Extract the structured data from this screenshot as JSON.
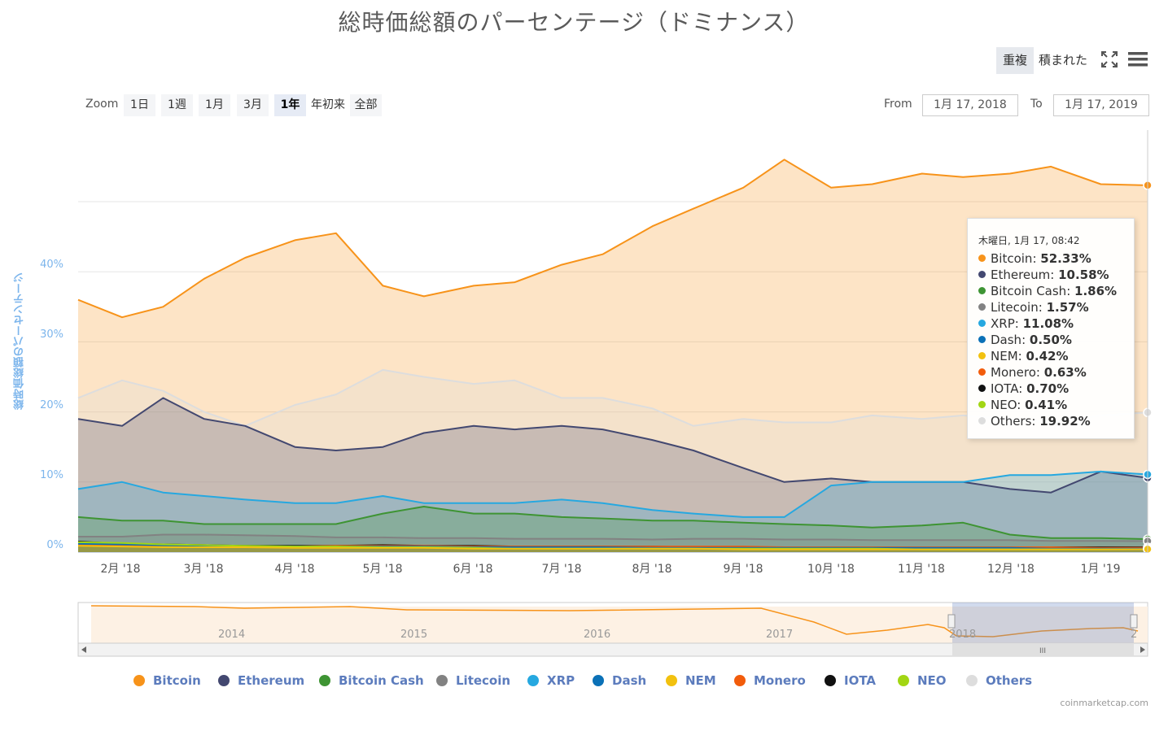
{
  "title": "総時価総額のパーセンテージ（ドミナンス）",
  "toolbar": {
    "overlay_label": "重複",
    "stacked_label": "積まれた",
    "fullscreen_icon": "fullscreen-icon",
    "menu_icon": "hamburger-menu-icon"
  },
  "zoom": {
    "label": "Zoom",
    "buttons": [
      "1日",
      "1週",
      "1月",
      "3月",
      "1年",
      "年初来",
      "全部"
    ],
    "active": "1年"
  },
  "range": {
    "from_label": "From",
    "from_value": "1月 17, 2018",
    "to_label": "To",
    "to_value": "1月 17, 2019"
  },
  "tooltip": {
    "header": "木曜日, 1月 17, 08:42",
    "rows": [
      {
        "name": "Bitcoin",
        "value": "52.33%",
        "color": "#f7931a"
      },
      {
        "name": "Ethereum",
        "value": "10.58%",
        "color": "#434870"
      },
      {
        "name": "Bitcoin Cash",
        "value": "1.86%",
        "color": "#3e9433"
      },
      {
        "name": "Litecoin",
        "value": "1.57%",
        "color": "#828282"
      },
      {
        "name": "XRP",
        "value": "11.08%",
        "color": "#26a8e0"
      },
      {
        "name": "Dash",
        "value": "0.50%",
        "color": "#0b71b7"
      },
      {
        "name": "NEM",
        "value": "0.42%",
        "color": "#f2c10f"
      },
      {
        "name": "Monero",
        "value": "0.63%",
        "color": "#f25c0b"
      },
      {
        "name": "IOTA",
        "value": "0.70%",
        "color": "#111111"
      },
      {
        "name": "NEO",
        "value": "0.41%",
        "color": "#a2d613"
      },
      {
        "name": "Others",
        "value": "19.92%",
        "color": "#dddddd"
      }
    ]
  },
  "navigator": {
    "years": [
      "2014",
      "2015",
      "2016",
      "2017",
      "2018",
      "2"
    ]
  },
  "credit": "coinmarketcap.com",
  "chart_data": {
    "type": "area",
    "ylabel": "総時価総額のパーセンテージ",
    "ylim": [
      0,
      60
    ],
    "yticks": [
      "0%",
      "10%",
      "20%",
      "30%",
      "40%"
    ],
    "x_labels": [
      "2月 '18",
      "3月 '18",
      "4月 '18",
      "5月 '18",
      "6月 '18",
      "7月 '18",
      "8月 '18",
      "9月 '18",
      "10月 '18",
      "11月 '18",
      "12月 '18",
      "1月 '19"
    ],
    "x": [
      "2018-01-17",
      "2018-02-01",
      "2018-02-15",
      "2018-03-01",
      "2018-03-15",
      "2018-04-01",
      "2018-04-15",
      "2018-05-01",
      "2018-05-15",
      "2018-06-01",
      "2018-06-15",
      "2018-07-01",
      "2018-07-15",
      "2018-08-01",
      "2018-08-15",
      "2018-09-01",
      "2018-09-15",
      "2018-10-01",
      "2018-10-15",
      "2018-11-01",
      "2018-11-15",
      "2018-12-01",
      "2018-12-15",
      "2019-01-01",
      "2019-01-17"
    ],
    "series": [
      {
        "name": "Bitcoin",
        "color": "#f7931a",
        "values": [
          36,
          33.5,
          35,
          39,
          42,
          44.5,
          45.5,
          38,
          36.5,
          38,
          38.5,
          41,
          42.5,
          46.5,
          49,
          52,
          56,
          52,
          52.5,
          54,
          53.5,
          54,
          55,
          52.5,
          52.33
        ]
      },
      {
        "name": "Others",
        "color": "#dddddd",
        "values": [
          22,
          24.5,
          23,
          20,
          18,
          21,
          22.5,
          26,
          25,
          24,
          24.5,
          22,
          22,
          20.5,
          18,
          19,
          18.5,
          18.5,
          19.5,
          19,
          19.5,
          19,
          18.5,
          19.5,
          19.92
        ]
      },
      {
        "name": "Ethereum",
        "color": "#434870",
        "values": [
          19,
          18,
          22,
          19,
          18,
          15,
          14.5,
          15,
          17,
          18,
          17.5,
          18,
          17.5,
          16,
          14.5,
          12,
          10,
          10.5,
          10,
          10,
          10,
          9,
          8.5,
          11.5,
          10.58
        ]
      },
      {
        "name": "XRP",
        "color": "#26a8e0",
        "values": [
          9,
          10,
          8.5,
          8,
          7.5,
          7,
          7,
          8,
          7,
          7,
          7,
          7.5,
          7,
          6,
          5.5,
          5,
          5,
          9.5,
          10,
          10,
          10,
          11,
          11,
          11.5,
          11.08
        ]
      },
      {
        "name": "Bitcoin Cash",
        "color": "#3e9433",
        "values": [
          5,
          4.5,
          4.5,
          4,
          4,
          4,
          4,
          5.5,
          6.5,
          5.5,
          5.5,
          5,
          4.8,
          4.5,
          4.5,
          4.2,
          4,
          3.8,
          3.5,
          3.8,
          4.2,
          2.5,
          2,
          2,
          1.86
        ]
      },
      {
        "name": "Litecoin",
        "color": "#828282",
        "values": [
          2.2,
          2.2,
          2.5,
          2.5,
          2.4,
          2.3,
          2.1,
          2.1,
          2,
          2,
          1.9,
          1.9,
          1.9,
          1.8,
          1.9,
          1.9,
          1.8,
          1.8,
          1.7,
          1.7,
          1.7,
          1.7,
          1.6,
          1.6,
          1.57
        ]
      },
      {
        "name": "IOTA",
        "color": "#111111",
        "values": [
          1.5,
          1.2,
          1.1,
          1,
          0.9,
          0.9,
          0.9,
          1,
          0.9,
          0.9,
          0.8,
          0.8,
          0.8,
          0.8,
          0.7,
          0.7,
          0.7,
          0.7,
          0.7,
          0.7,
          0.7,
          0.7,
          0.7,
          0.7,
          0.7
        ]
      },
      {
        "name": "Monero",
        "color": "#f25c0b",
        "values": [
          1,
          1,
          1,
          0.9,
          0.8,
          0.8,
          0.9,
          0.9,
          0.9,
          0.8,
          0.8,
          0.8,
          0.8,
          0.8,
          0.8,
          0.8,
          0.7,
          0.7,
          0.7,
          0.7,
          0.7,
          0.7,
          0.7,
          0.6,
          0.63
        ]
      },
      {
        "name": "Dash",
        "color": "#0b71b7",
        "values": [
          1.2,
          1.1,
          1,
          0.9,
          0.8,
          0.8,
          0.8,
          0.8,
          0.8,
          0.7,
          0.7,
          0.7,
          0.7,
          0.6,
          0.6,
          0.6,
          0.6,
          0.6,
          0.6,
          0.6,
          0.6,
          0.6,
          0.5,
          0.5,
          0.5
        ]
      },
      {
        "name": "NEO",
        "color": "#a2d613",
        "values": [
          1.4,
          1.3,
          1.1,
          1,
          0.9,
          0.8,
          0.8,
          0.7,
          0.7,
          0.6,
          0.5,
          0.5,
          0.5,
          0.5,
          0.5,
          0.5,
          0.5,
          0.5,
          0.5,
          0.4,
          0.4,
          0.4,
          0.4,
          0.4,
          0.41
        ]
      },
      {
        "name": "NEM",
        "color": "#f2c10f",
        "values": [
          0.9,
          0.8,
          0.7,
          0.7,
          0.7,
          0.6,
          0.6,
          0.6,
          0.6,
          0.5,
          0.5,
          0.5,
          0.5,
          0.5,
          0.5,
          0.4,
          0.4,
          0.4,
          0.4,
          0.4,
          0.4,
          0.4,
          0.4,
          0.4,
          0.42
        ]
      }
    ],
    "legend": [
      "Bitcoin",
      "Ethereum",
      "Bitcoin Cash",
      "Litecoin",
      "XRP",
      "Dash",
      "NEM",
      "Monero",
      "IOTA",
      "NEO",
      "Others"
    ],
    "legend_placement": "bottom",
    "grid": true
  }
}
